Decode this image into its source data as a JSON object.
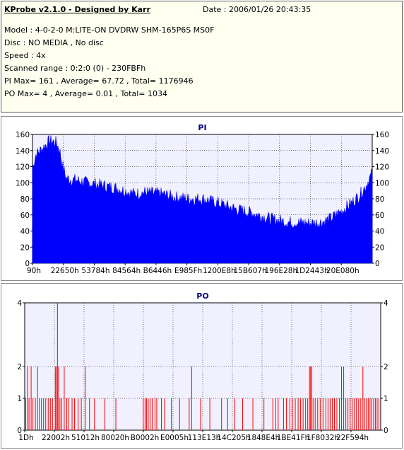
{
  "header": {
    "title": "KProbe v2.1.0 - Designed by Karr",
    "date": "Date : 2006/01/26 20:43:35",
    "model": "Model : 4-0-2-0 M:LITE-ON DVDRW SHM-165P6S MS0F",
    "disc": "Disc : NO MEDIA , No disc",
    "speed": "Speed : 4x",
    "scanned_range": "Scanned range : 0:2:0 (0) - 230FBFh",
    "pi_stats": "PI Max= 161 , Average= 67.72 , Total= 1176946",
    "po_stats": "PO Max= 4 , Average= 0.01 , Total= 1034"
  },
  "colors": {
    "pi_fill": "#0000ff",
    "po_bar": "#ff0000",
    "plot_bg": "#f0f0ff",
    "grid": "#000000",
    "title": "#000080"
  },
  "chart_data": [
    {
      "type": "area",
      "title": "PI",
      "ylim": [
        0,
        160
      ],
      "yticks": [
        0,
        20,
        40,
        60,
        80,
        100,
        120,
        140,
        160
      ],
      "xtick_labels": [
        "90h",
        "22650h",
        "53784h",
        "84564h",
        "B6446h",
        "E985Fh",
        "1200E8h",
        "15B607h",
        "196E28h",
        "1D2443h",
        "20E080h"
      ],
      "grid": true,
      "profile": {
        "x": [
          0,
          0.01,
          0.03,
          0.05,
          0.07,
          0.08,
          0.09,
          0.1,
          0.13,
          0.16,
          0.2,
          0.25,
          0.3,
          0.33,
          0.38,
          0.42,
          0.46,
          0.5,
          0.55,
          0.6,
          0.65,
          0.7,
          0.75,
          0.8,
          0.84,
          0.86,
          0.88,
          0.91,
          0.94,
          0.96,
          0.98,
          1.0
        ],
        "y": [
          118,
          135,
          143,
          152,
          150,
          140,
          118,
          105,
          103,
          100,
          97,
          93,
          86,
          88,
          86,
          82,
          80,
          80,
          74,
          67,
          62,
          55,
          51,
          50,
          50,
          52,
          56,
          65,
          75,
          83,
          95,
          112
        ]
      }
    },
    {
      "type": "bar",
      "title": "PO",
      "ylim": [
        0,
        4
      ],
      "yticks": [
        0,
        1,
        2,
        4
      ],
      "xtick_labels": [
        "1Dh",
        "22002h",
        "51012h",
        "80020h",
        "B0002h",
        "E0005h",
        "113E13h",
        "14C205h",
        "1848E4h",
        "1BE41Fh",
        "1F8032h",
        "22F594h"
      ],
      "grid": true,
      "spikes": [
        {
          "x": 0.003,
          "v": 1
        },
        {
          "x": 0.008,
          "v": 2
        },
        {
          "x": 0.012,
          "v": 1
        },
        {
          "x": 0.018,
          "v": 2
        },
        {
          "x": 0.023,
          "v": 1
        },
        {
          "x": 0.03,
          "v": 1
        },
        {
          "x": 0.036,
          "v": 2
        },
        {
          "x": 0.041,
          "v": 1
        },
        {
          "x": 0.047,
          "v": 1
        },
        {
          "x": 0.053,
          "v": 1
        },
        {
          "x": 0.059,
          "v": 1
        },
        {
          "x": 0.066,
          "v": 1
        },
        {
          "x": 0.072,
          "v": 1
        },
        {
          "x": 0.078,
          "v": 1
        },
        {
          "x": 0.086,
          "v": 2
        },
        {
          "x": 0.089,
          "v": 2
        },
        {
          "x": 0.092,
          "v": 4
        },
        {
          "x": 0.095,
          "v": 2
        },
        {
          "x": 0.099,
          "v": 1
        },
        {
          "x": 0.104,
          "v": 1
        },
        {
          "x": 0.111,
          "v": 2
        },
        {
          "x": 0.118,
          "v": 1
        },
        {
          "x": 0.124,
          "v": 1
        },
        {
          "x": 0.133,
          "v": 1
        },
        {
          "x": 0.14,
          "v": 1
        },
        {
          "x": 0.15,
          "v": 1
        },
        {
          "x": 0.159,
          "v": 1
        },
        {
          "x": 0.17,
          "v": 2
        },
        {
          "x": 0.182,
          "v": 1
        },
        {
          "x": 0.196,
          "v": 1
        },
        {
          "x": 0.225,
          "v": 1
        },
        {
          "x": 0.256,
          "v": 1
        },
        {
          "x": 0.333,
          "v": 1
        },
        {
          "x": 0.338,
          "v": 1
        },
        {
          "x": 0.342,
          "v": 1
        },
        {
          "x": 0.347,
          "v": 1
        },
        {
          "x": 0.352,
          "v": 1
        },
        {
          "x": 0.358,
          "v": 1
        },
        {
          "x": 0.366,
          "v": 1
        },
        {
          "x": 0.371,
          "v": 1
        },
        {
          "x": 0.384,
          "v": 1
        },
        {
          "x": 0.393,
          "v": 1
        },
        {
          "x": 0.412,
          "v": 1
        },
        {
          "x": 0.435,
          "v": 1
        },
        {
          "x": 0.462,
          "v": 1
        },
        {
          "x": 0.469,
          "v": 2
        },
        {
          "x": 0.494,
          "v": 1
        },
        {
          "x": 0.52,
          "v": 1
        },
        {
          "x": 0.553,
          "v": 1
        },
        {
          "x": 0.57,
          "v": 1
        },
        {
          "x": 0.59,
          "v": 1
        },
        {
          "x": 0.612,
          "v": 1
        },
        {
          "x": 0.641,
          "v": 1
        },
        {
          "x": 0.672,
          "v": 1
        },
        {
          "x": 0.697,
          "v": 1
        },
        {
          "x": 0.705,
          "v": 1
        },
        {
          "x": 0.712,
          "v": 1
        },
        {
          "x": 0.727,
          "v": 1
        },
        {
          "x": 0.735,
          "v": 1
        },
        {
          "x": 0.745,
          "v": 1
        },
        {
          "x": 0.752,
          "v": 1
        },
        {
          "x": 0.76,
          "v": 1
        },
        {
          "x": 0.768,
          "v": 1
        },
        {
          "x": 0.775,
          "v": 1
        },
        {
          "x": 0.782,
          "v": 1
        },
        {
          "x": 0.789,
          "v": 1
        },
        {
          "x": 0.795,
          "v": 1
        },
        {
          "x": 0.8,
          "v": 2
        },
        {
          "x": 0.803,
          "v": 2
        },
        {
          "x": 0.806,
          "v": 2
        },
        {
          "x": 0.81,
          "v": 1
        },
        {
          "x": 0.816,
          "v": 1
        },
        {
          "x": 0.823,
          "v": 1
        },
        {
          "x": 0.83,
          "v": 1
        },
        {
          "x": 0.838,
          "v": 1
        },
        {
          "x": 0.846,
          "v": 1
        },
        {
          "x": 0.852,
          "v": 1
        },
        {
          "x": 0.858,
          "v": 1
        },
        {
          "x": 0.864,
          "v": 1
        },
        {
          "x": 0.87,
          "v": 1
        },
        {
          "x": 0.877,
          "v": 1
        },
        {
          "x": 0.884,
          "v": 1
        },
        {
          "x": 0.89,
          "v": 2
        },
        {
          "x": 0.896,
          "v": 2
        },
        {
          "x": 0.902,
          "v": 1
        },
        {
          "x": 0.908,
          "v": 1
        },
        {
          "x": 0.914,
          "v": 1
        },
        {
          "x": 0.92,
          "v": 1
        },
        {
          "x": 0.926,
          "v": 1
        },
        {
          "x": 0.932,
          "v": 1
        },
        {
          "x": 0.938,
          "v": 1
        },
        {
          "x": 0.944,
          "v": 1
        },
        {
          "x": 0.95,
          "v": 2
        },
        {
          "x": 0.955,
          "v": 1
        },
        {
          "x": 0.96,
          "v": 1
        },
        {
          "x": 0.965,
          "v": 1
        },
        {
          "x": 0.97,
          "v": 1
        },
        {
          "x": 0.975,
          "v": 1
        },
        {
          "x": 0.98,
          "v": 1
        },
        {
          "x": 0.985,
          "v": 1
        },
        {
          "x": 0.99,
          "v": 1
        },
        {
          "x": 0.995,
          "v": 1
        }
      ]
    }
  ]
}
